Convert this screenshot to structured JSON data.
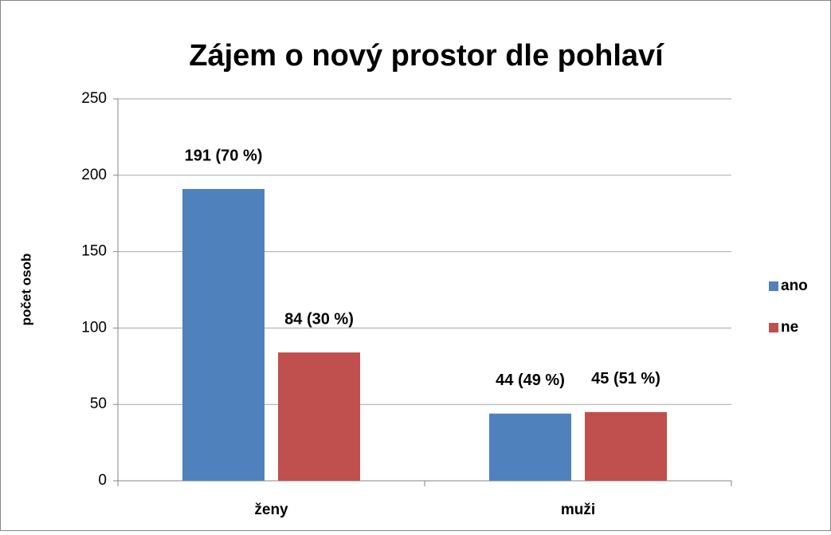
{
  "chart_data": {
    "type": "bar",
    "title": "Zájem o nový prostor dle pohlaví",
    "y_label": "počet osob",
    "categories": [
      "ženy",
      "muži"
    ],
    "series": [
      {
        "name": "ano",
        "color": "#4f81bd",
        "values": [
          191,
          44
        ],
        "value_labels": [
          "191 (70 %)",
          "44 (49 %)"
        ]
      },
      {
        "name": "ne",
        "color": "#c0504d",
        "values": [
          84,
          45
        ],
        "value_labels": [
          "84 (30 %)",
          "45 (51 %)"
        ]
      }
    ],
    "ylim": [
      0,
      250
    ],
    "yticks": [
      0,
      50,
      100,
      150,
      200,
      250
    ],
    "grid": true,
    "legend": "right"
  }
}
